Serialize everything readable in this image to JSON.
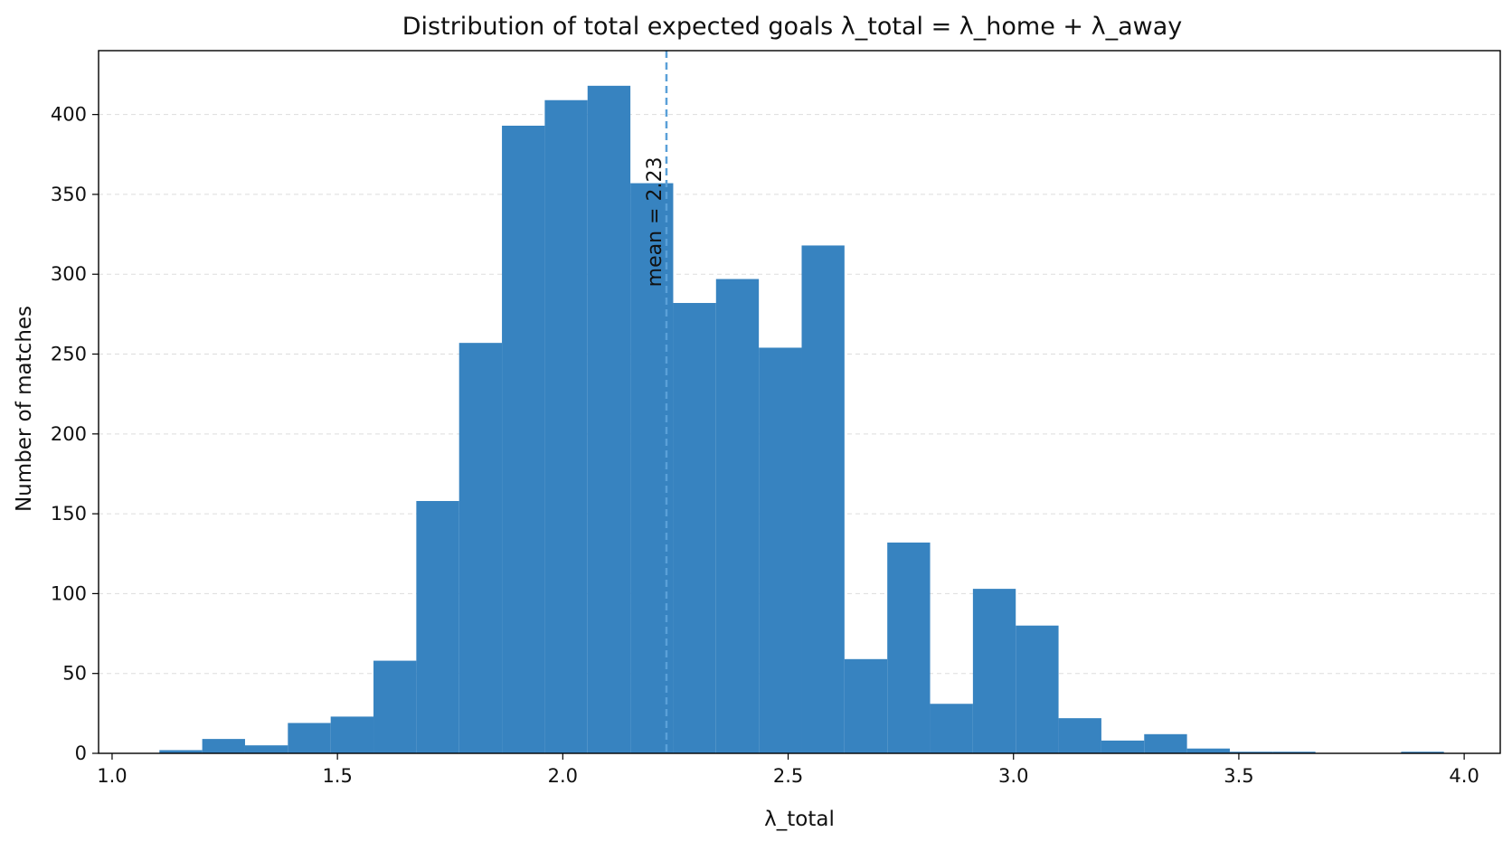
{
  "chart_data": {
    "type": "bar",
    "title": "Distribution of total expected goals λ_total = λ_home + λ_away",
    "xlabel": "λ_total",
    "ylabel": "Number of matches",
    "xlim": [
      0.97,
      4.08
    ],
    "ylim": [
      0,
      440
    ],
    "xticks": [
      1.0,
      1.5,
      2.0,
      2.5,
      3.0,
      3.5,
      4.0
    ],
    "xtick_labels": [
      "1.0",
      "1.5",
      "2.0",
      "2.5",
      "3.0",
      "3.5",
      "4.0"
    ],
    "yticks": [
      0,
      50,
      100,
      150,
      200,
      250,
      300,
      350,
      400
    ],
    "ytick_labels": [
      "0",
      "50",
      "100",
      "150",
      "200",
      "250",
      "300",
      "350",
      "400"
    ],
    "grid": "y-dashed",
    "bar_color": "#3783c0",
    "bin_edges": [
      1.105,
      1.2,
      1.295,
      1.39,
      1.485,
      1.58,
      1.675,
      1.77,
      1.865,
      1.96,
      2.055,
      2.15,
      2.245,
      2.34,
      2.435,
      2.53,
      2.625,
      2.72,
      2.815,
      2.91,
      3.005,
      3.1,
      3.195,
      3.29,
      3.385,
      3.48,
      3.575,
      3.67,
      3.765,
      3.86,
      3.955
    ],
    "values": [
      2,
      9,
      5,
      19,
      23,
      58,
      158,
      257,
      393,
      409,
      418,
      357,
      282,
      297,
      254,
      318,
      59,
      132,
      31,
      103,
      80,
      22,
      8,
      12,
      3,
      1,
      1,
      0,
      0,
      1
    ],
    "mean_line": {
      "x": 2.23,
      "label": "mean = 2.23",
      "color": "#5aa0d8"
    }
  }
}
